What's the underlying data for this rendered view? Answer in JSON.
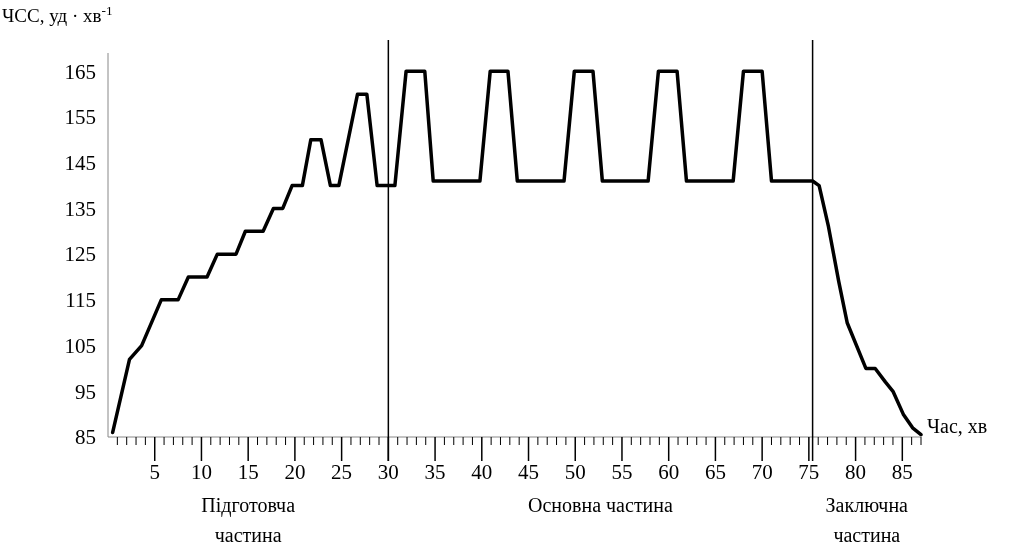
{
  "chart_data": {
    "type": "line",
    "ylabel": "ЧСС, уд · хв$^{-1}$",
    "xlabel": "Час, хв",
    "xlim": [
      0,
      87
    ],
    "ylim": [
      85,
      169
    ],
    "yticks": [
      85,
      95,
      105,
      115,
      125,
      135,
      145,
      155,
      165
    ],
    "xticks": [
      {
        "value": 1,
        "label": null
      },
      {
        "value": 2,
        "label": null
      },
      {
        "value": 3,
        "label": null
      },
      {
        "value": 4,
        "label": null
      },
      5,
      {
        "value": 6,
        "label": null
      },
      {
        "value": 7,
        "label": null
      },
      {
        "value": 8,
        "label": null
      },
      {
        "value": 9,
        "label": null
      },
      10,
      {
        "value": 11,
        "label": null
      },
      {
        "value": 12,
        "label": null
      },
      {
        "value": 13,
        "label": null
      },
      {
        "value": 14,
        "label": null
      },
      15,
      {
        "value": 16,
        "label": null
      },
      {
        "value": 17,
        "label": null
      },
      {
        "value": 18,
        "label": null
      },
      {
        "value": 19,
        "label": null
      },
      20,
      {
        "value": 21,
        "label": null
      },
      {
        "value": 22,
        "label": null
      },
      {
        "value": 23,
        "label": null
      },
      {
        "value": 24,
        "label": null
      },
      25,
      {
        "value": 26,
        "label": null
      },
      {
        "value": 27,
        "label": null
      },
      {
        "value": 28,
        "label": null
      },
      {
        "value": 29,
        "label": null
      },
      30,
      {
        "value": 31,
        "label": null
      },
      {
        "value": 32,
        "label": null
      },
      {
        "value": 33,
        "label": null
      },
      {
        "value": 34,
        "label": null
      },
      35,
      {
        "value": 36,
        "label": null
      },
      {
        "value": 37,
        "label": null
      },
      {
        "value": 38,
        "label": null
      },
      {
        "value": 39,
        "label": null
      },
      40,
      {
        "value": 41,
        "label": null
      },
      {
        "value": 42,
        "label": null
      },
      {
        "value": 43,
        "label": null
      },
      {
        "value": 44,
        "label": null
      },
      45,
      {
        "value": 46,
        "label": null
      },
      {
        "value": 47,
        "label": null
      },
      {
        "value": 48,
        "label": null
      },
      {
        "value": 49,
        "label": null
      },
      50,
      {
        "value": 51,
        "label": null
      },
      {
        "value": 52,
        "label": null
      },
      {
        "value": 53,
        "label": null
      },
      {
        "value": 54,
        "label": null
      },
      55,
      {
        "value": 56,
        "label": null
      },
      {
        "value": 57,
        "label": null
      },
      {
        "value": 58,
        "label": null
      },
      {
        "value": 59,
        "label": null
      },
      60,
      {
        "value": 61,
        "label": null
      },
      {
        "value": 62,
        "label": null
      },
      {
        "value": 63,
        "label": null
      },
      {
        "value": 64,
        "label": null
      },
      65,
      {
        "value": 66,
        "label": null
      },
      {
        "value": 67,
        "label": null
      },
      {
        "value": 68,
        "label": null
      },
      {
        "value": 69,
        "label": null
      },
      70,
      {
        "value": 71,
        "label": null
      },
      {
        "value": 72,
        "label": null
      },
      {
        "value": 73,
        "label": null
      },
      {
        "value": 74,
        "label": null
      },
      75,
      {
        "value": 76,
        "label": null
      },
      {
        "value": 77,
        "label": null
      },
      {
        "value": 78,
        "label": null
      },
      {
        "value": 79,
        "label": null
      },
      80,
      {
        "value": 81,
        "label": null
      },
      {
        "value": 82,
        "label": null
      },
      {
        "value": 83,
        "label": null
      },
      {
        "value": 84,
        "label": null
      },
      85,
      {
        "value": 86,
        "label": null
      },
      {
        "value": 87,
        "label": null
      }
    ],
    "grid": false,
    "marker": "none",
    "line_style": "solid",
    "ref_lines": [
      {
        "axis": "x",
        "value": 30,
        "color": "#000000"
      },
      {
        "axis": "x",
        "value": 75.4,
        "color": "#000000"
      }
    ],
    "annotations": [
      "Підготовча частина",
      "Основна частина",
      "Заключна частина"
    ],
    "series": [
      {
        "color": "#000000",
        "x": [
          0.5,
          2.3,
          3.6,
          5.7,
          7.5,
          8.6,
          10.6,
          11.7,
          13.7,
          14.7,
          16.6,
          17.7,
          18.7,
          19.7,
          20.8,
          21.7,
          22.8,
          23.8,
          24.7,
          26.7,
          27.7,
          28.8,
          30.7,
          31.9,
          33.9,
          34.8,
          39.8,
          40.9,
          42.8,
          43.8,
          48.8,
          49.9,
          51.9,
          52.9,
          57.8,
          58.9,
          60.9,
          61.9,
          66.9,
          68,
          70,
          71,
          75.4,
          76.1,
          77.1,
          78.2,
          79.1,
          81.1,
          82.1,
          83.2,
          84,
          85.1,
          86.1,
          87
        ],
        "values": [
          86,
          102,
          105,
          115,
          115,
          120,
          120,
          125,
          125,
          130,
          130,
          135,
          135,
          140,
          140,
          150,
          150,
          140,
          140,
          160,
          160,
          140,
          140,
          165,
          165,
          141,
          141,
          165,
          165,
          141,
          141,
          165,
          165,
          141,
          141,
          165,
          165,
          141,
          141,
          165,
          165,
          141,
          141,
          140,
          131,
          119,
          110,
          100,
          100,
          97,
          95,
          90,
          87,
          85.5
        ]
      }
    ]
  }
}
